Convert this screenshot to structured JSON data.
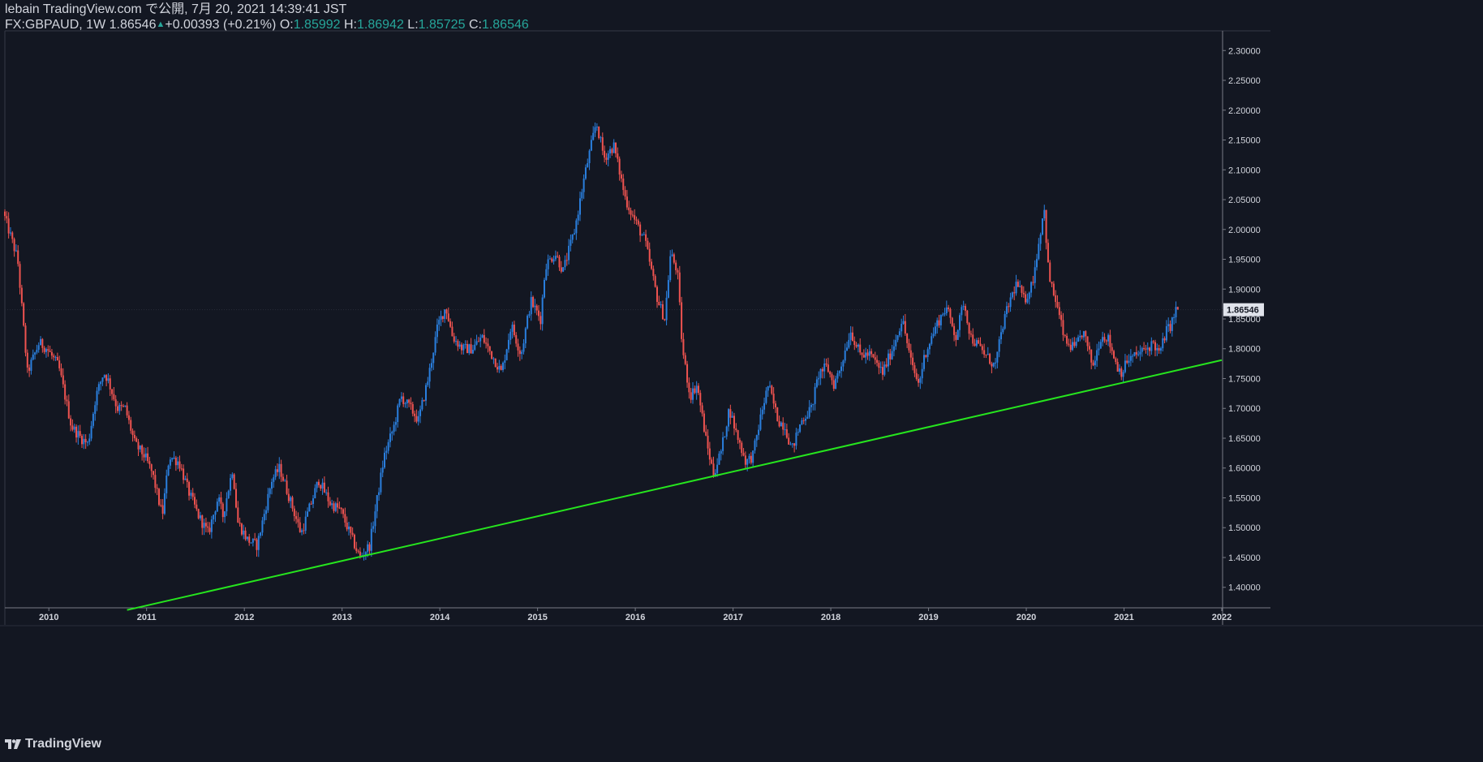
{
  "header": {
    "publish_line": "lebain TradingView.com で公開, 7月 20, 2021 14:39:41 JST",
    "symbol": "FX:GBPAUD, 1W",
    "last_price": "1.86546",
    "change": "+0.00393 (+0.21%)",
    "open_label": "O:",
    "open": "1.85992",
    "high_label": "H:",
    "high": "1.86942",
    "low_label": "L:",
    "low": "1.85725",
    "close_label": "C:",
    "close": "1.86546"
  },
  "footer": {
    "brand": "TradingView"
  },
  "colors": {
    "background": "#131722",
    "up": "#2a7fde",
    "down": "#ef5350",
    "trendline": "#26e51e",
    "axis_text": "#d1d4dc",
    "price_label_bg": "#e0e3eb"
  },
  "chart_data": {
    "type": "candlestick",
    "symbol": "FX:GBPAUD",
    "interval": "1W",
    "xlim": [
      2009.55,
      2022.0
    ],
    "ylim": [
      1.367,
      2.333
    ],
    "x_ticks": [
      {
        "value": 2010,
        "label": "2010"
      },
      {
        "value": 2011,
        "label": "2011"
      },
      {
        "value": 2012,
        "label": "2012"
      },
      {
        "value": 2013,
        "label": "2013"
      },
      {
        "value": 2014,
        "label": "2014"
      },
      {
        "value": 2015,
        "label": "2015"
      },
      {
        "value": 2016,
        "label": "2016"
      },
      {
        "value": 2017,
        "label": "2017"
      },
      {
        "value": 2018,
        "label": "2018"
      },
      {
        "value": 2019,
        "label": "2019"
      },
      {
        "value": 2020,
        "label": "2020"
      },
      {
        "value": 2021,
        "label": "2021"
      },
      {
        "value": 2022,
        "label": "2022"
      }
    ],
    "y_ticks": [
      "2.30000",
      "2.25000",
      "2.20000",
      "2.15000",
      "2.10000",
      "2.05000",
      "2.00000",
      "1.95000",
      "1.90000",
      "1.85000",
      "1.80000",
      "1.75000",
      "1.70000",
      "1.65000",
      "1.60000",
      "1.55000",
      "1.50000",
      "1.45000",
      "1.40000"
    ],
    "last_price_label": "1.86546",
    "last_price": 1.86546,
    "path": [
      [
        2009.55,
        2.03
      ],
      [
        2009.7,
        1.95
      ],
      [
        2009.8,
        1.76
      ],
      [
        2009.92,
        1.81
      ],
      [
        2010.0,
        1.8
      ],
      [
        2010.12,
        1.77
      ],
      [
        2010.25,
        1.67
      ],
      [
        2010.35,
        1.65
      ],
      [
        2010.42,
        1.64
      ],
      [
        2010.5,
        1.72
      ],
      [
        2010.58,
        1.76
      ],
      [
        2010.62,
        1.75
      ],
      [
        2010.68,
        1.72
      ],
      [
        2010.72,
        1.7
      ],
      [
        2010.8,
        1.7
      ],
      [
        2010.9,
        1.64
      ],
      [
        2011.0,
        1.62
      ],
      [
        2011.08,
        1.59
      ],
      [
        2011.18,
        1.52
      ],
      [
        2011.25,
        1.62
      ],
      [
        2011.35,
        1.61
      ],
      [
        2011.45,
        1.56
      ],
      [
        2011.55,
        1.52
      ],
      [
        2011.65,
        1.49
      ],
      [
        2011.75,
        1.55
      ],
      [
        2011.8,
        1.52
      ],
      [
        2011.9,
        1.6
      ],
      [
        2011.95,
        1.51
      ],
      [
        2012.05,
        1.48
      ],
      [
        2012.15,
        1.47
      ],
      [
        2012.3,
        1.58
      ],
      [
        2012.38,
        1.6
      ],
      [
        2012.5,
        1.54
      ],
      [
        2012.6,
        1.49
      ],
      [
        2012.72,
        1.55
      ],
      [
        2012.78,
        1.58
      ],
      [
        2012.9,
        1.54
      ],
      [
        2013.0,
        1.53
      ],
      [
        2013.1,
        1.49
      ],
      [
        2013.2,
        1.45
      ],
      [
        2013.3,
        1.47
      ],
      [
        2013.38,
        1.55
      ],
      [
        2013.45,
        1.62
      ],
      [
        2013.55,
        1.67
      ],
      [
        2013.62,
        1.72
      ],
      [
        2013.72,
        1.7
      ],
      [
        2013.8,
        1.68
      ],
      [
        2013.9,
        1.75
      ],
      [
        2014.0,
        1.84
      ],
      [
        2014.08,
        1.87
      ],
      [
        2014.15,
        1.82
      ],
      [
        2014.25,
        1.8
      ],
      [
        2014.35,
        1.8
      ],
      [
        2014.45,
        1.82
      ],
      [
        2014.55,
        1.79
      ],
      [
        2014.65,
        1.76
      ],
      [
        2014.75,
        1.84
      ],
      [
        2014.85,
        1.79
      ],
      [
        2014.95,
        1.88
      ],
      [
        2015.05,
        1.85
      ],
      [
        2015.1,
        1.94
      ],
      [
        2015.2,
        1.96
      ],
      [
        2015.28,
        1.93
      ],
      [
        2015.4,
        2.0
      ],
      [
        2015.5,
        2.09
      ],
      [
        2015.62,
        2.18
      ],
      [
        2015.7,
        2.12
      ],
      [
        2015.8,
        2.14
      ],
      [
        2015.92,
        2.05
      ],
      [
        2016.0,
        2.02
      ],
      [
        2016.12,
        1.98
      ],
      [
        2016.25,
        1.88
      ],
      [
        2016.32,
        1.85
      ],
      [
        2016.38,
        1.96
      ],
      [
        2016.45,
        1.93
      ],
      [
        2016.5,
        1.8
      ],
      [
        2016.58,
        1.72
      ],
      [
        2016.65,
        1.74
      ],
      [
        2016.75,
        1.64
      ],
      [
        2016.82,
        1.59
      ],
      [
        2016.9,
        1.63
      ],
      [
        2016.98,
        1.7
      ],
      [
        2017.05,
        1.66
      ],
      [
        2017.15,
        1.61
      ],
      [
        2017.22,
        1.62
      ],
      [
        2017.32,
        1.7
      ],
      [
        2017.38,
        1.74
      ],
      [
        2017.48,
        1.68
      ],
      [
        2017.55,
        1.67
      ],
      [
        2017.62,
        1.63
      ],
      [
        2017.72,
        1.68
      ],
      [
        2017.82,
        1.7
      ],
      [
        2017.9,
        1.76
      ],
      [
        2017.98,
        1.77
      ],
      [
        2018.05,
        1.74
      ],
      [
        2018.12,
        1.77
      ],
      [
        2018.22,
        1.83
      ],
      [
        2018.32,
        1.79
      ],
      [
        2018.42,
        1.79
      ],
      [
        2018.55,
        1.76
      ],
      [
        2018.65,
        1.8
      ],
      [
        2018.75,
        1.85
      ],
      [
        2018.85,
        1.77
      ],
      [
        2018.92,
        1.74
      ],
      [
        2018.98,
        1.79
      ],
      [
        2019.1,
        1.84
      ],
      [
        2019.2,
        1.87
      ],
      [
        2019.3,
        1.82
      ],
      [
        2019.38,
        1.88
      ],
      [
        2019.45,
        1.82
      ],
      [
        2019.6,
        1.79
      ],
      [
        2019.7,
        1.77
      ],
      [
        2019.78,
        1.84
      ],
      [
        2019.85,
        1.88
      ],
      [
        2019.92,
        1.91
      ],
      [
        2020.0,
        1.88
      ],
      [
        2020.08,
        1.91
      ],
      [
        2020.15,
        1.98
      ],
      [
        2020.2,
        2.04
      ],
      [
        2020.25,
        1.92
      ],
      [
        2020.32,
        1.88
      ],
      [
        2020.42,
        1.81
      ],
      [
        2020.52,
        1.8
      ],
      [
        2020.6,
        1.83
      ],
      [
        2020.7,
        1.77
      ],
      [
        2020.78,
        1.82
      ],
      [
        2020.85,
        1.82
      ],
      [
        2020.95,
        1.77
      ],
      [
        2021.0,
        1.76
      ],
      [
        2021.05,
        1.78
      ],
      [
        2021.15,
        1.79
      ],
      [
        2021.25,
        1.8
      ],
      [
        2021.32,
        1.81
      ],
      [
        2021.38,
        1.79
      ],
      [
        2021.45,
        1.83
      ],
      [
        2021.5,
        1.84
      ],
      [
        2021.55,
        1.86546
      ]
    ],
    "trendline": {
      "x1": 2010.8,
      "y1": 1.362,
      "x2": 2022.0,
      "y2": 1.781
    }
  }
}
